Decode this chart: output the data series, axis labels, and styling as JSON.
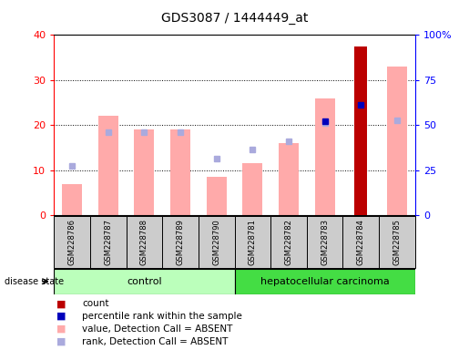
{
  "title": "GDS3087 / 1444449_at",
  "samples": [
    "GSM228786",
    "GSM228787",
    "GSM228788",
    "GSM228789",
    "GSM228790",
    "GSM228781",
    "GSM228782",
    "GSM228783",
    "GSM228784",
    "GSM228785"
  ],
  "value_absent": [
    7,
    22,
    19,
    19,
    8.5,
    11.5,
    16,
    26,
    null,
    33
  ],
  "rank_absent": [
    11,
    18.5,
    18.5,
    18.5,
    12.5,
    14.5,
    16.5,
    20.5,
    null,
    21
  ],
  "count": [
    null,
    null,
    null,
    null,
    null,
    null,
    null,
    null,
    37.5,
    null
  ],
  "percentile_rank": [
    null,
    null,
    null,
    null,
    null,
    null,
    null,
    20.8,
    24.5,
    null
  ],
  "ylim_left": [
    0,
    40
  ],
  "ylim_right": [
    0,
    100
  ],
  "yticks_left": [
    0,
    10,
    20,
    30,
    40
  ],
  "yticks_right": [
    0,
    25,
    50,
    75,
    100
  ],
  "yticklabels_right": [
    "0",
    "25",
    "50",
    "75",
    "100%"
  ],
  "color_count": "#bb0000",
  "color_percentile": "#0000bb",
  "color_value_absent": "#ffaaaa",
  "color_rank_absent": "#aaaadd",
  "color_control_bg": "#bbffbb",
  "color_hcc_bg": "#44dd44",
  "color_sample_bg": "#cccccc",
  "bg_color": "#ffffff",
  "plot_bg": "#ffffff",
  "n_control": 5,
  "n_hcc": 5
}
